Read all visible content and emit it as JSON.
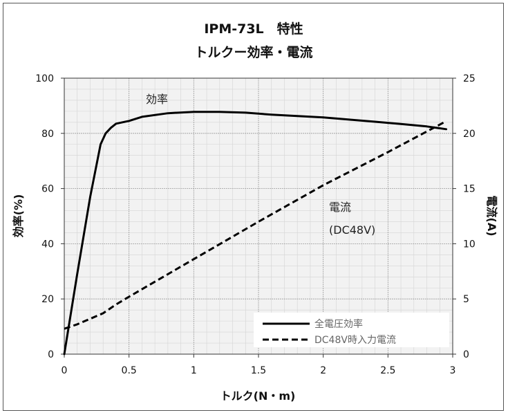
{
  "chart_data": {
    "type": "line",
    "title": "IPM-73L　特性",
    "subtitle": "トルクー効率・電流",
    "xlabel": "トルク(N・m)",
    "ylabel": "効率(%)",
    "y2label": "電流(A)",
    "xlim": [
      0,
      3
    ],
    "ylim": [
      0,
      100
    ],
    "y2lim": [
      0,
      25
    ],
    "xticks": [
      "0",
      "0.5",
      "1",
      "1.5",
      "2",
      "2.5",
      "3"
    ],
    "yticks": [
      "0",
      "20",
      "40",
      "60",
      "80",
      "100"
    ],
    "y2ticks": [
      "0",
      "5",
      "10",
      "15",
      "20",
      "25"
    ],
    "grid": true,
    "legend_position": "bottom-right",
    "annotations": {
      "efficiency": "効率",
      "current_line1": "電流",
      "current_line2": "(DC48V)"
    },
    "series": [
      {
        "name": "全電圧効率",
        "axis": "left",
        "style": "solid",
        "color": "#000000",
        "x": [
          0,
          0.1,
          0.2,
          0.28,
          0.32,
          0.36,
          0.4,
          0.5,
          0.6,
          0.8,
          1.0,
          1.2,
          1.4,
          1.6,
          1.8,
          2.0,
          2.2,
          2.4,
          2.6,
          2.8,
          2.95
        ],
        "y": [
          0,
          29,
          57,
          76,
          80,
          82,
          83.5,
          84.5,
          86,
          87.3,
          87.8,
          87.8,
          87.5,
          86.8,
          86.3,
          85.8,
          85,
          84.2,
          83.4,
          82.5,
          81.5
        ]
      },
      {
        "name": "DC48V時入力電流",
        "axis": "right",
        "style": "dashed",
        "color": "#000000",
        "x": [
          0,
          0.1,
          0.2,
          0.3,
          0.4,
          0.5,
          1.0,
          1.5,
          2.0,
          2.5,
          2.95
        ],
        "y": [
          2.3,
          2.7,
          3.2,
          3.7,
          4.5,
          5.2,
          8.6,
          12.0,
          15.3,
          18.3,
          21.1
        ]
      }
    ]
  }
}
